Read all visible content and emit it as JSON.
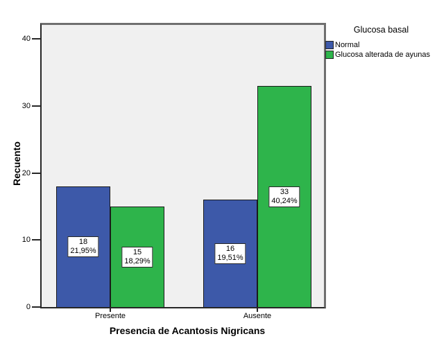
{
  "chart_data": {
    "type": "bar",
    "title": "",
    "xlabel": "Presencia de Acantosis Nigricans",
    "ylabel": "Recuento",
    "categories": [
      "Presente",
      "Ausente"
    ],
    "series": [
      {
        "name": "Normal",
        "color": "#3D59A9",
        "values": [
          18,
          16
        ],
        "percent_labels": [
          "21,95%",
          "19,51%"
        ]
      },
      {
        "name": "Glucosa alterada de ayunas",
        "color": "#2EB44B",
        "values": [
          15,
          33
        ],
        "percent_labels": [
          "18,29%",
          "40,24%"
        ]
      }
    ],
    "legend": {
      "title": "Glucosa basal",
      "position": "right"
    },
    "yticks": [
      0,
      10,
      20,
      30,
      40
    ],
    "ylim": [
      0,
      42
    ],
    "grid": false,
    "bar_label_style": "count_and_percent",
    "plot_background": "#F0F0F0"
  }
}
